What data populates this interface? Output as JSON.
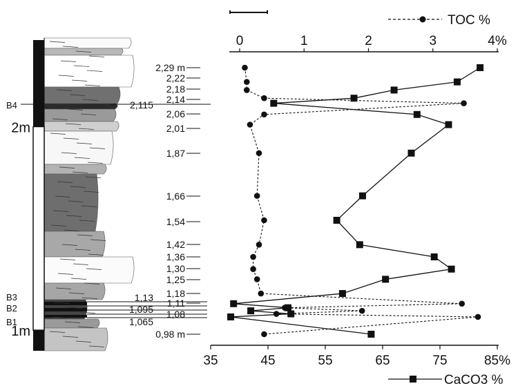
{
  "chart_data": {
    "type": "line",
    "title": "",
    "depth_unit": "m",
    "depth_range": [
      0.92,
      2.35
    ],
    "toc_axis": {
      "range": [
        0,
        4
      ],
      "ticks": [
        0,
        1,
        2,
        3,
        4
      ],
      "tick_labels": [
        "0",
        "1",
        "2",
        "3",
        "4%"
      ]
    },
    "caco3_axis": {
      "range": [
        35,
        85
      ],
      "ticks": [
        35,
        45,
        55,
        65,
        75,
        85
      ],
      "tick_labels": [
        "35",
        "45",
        "55",
        "65",
        "75",
        "85%"
      ]
    },
    "legend": {
      "toc": "TOC %",
      "caco3": "CaCO3 %"
    },
    "depth_labels": [
      {
        "label": "2,29 m",
        "depth": 2.29
      },
      {
        "label": "2,22",
        "depth": 2.22
      },
      {
        "label": "2,18",
        "depth": 2.18
      },
      {
        "label": "2,14",
        "depth": 2.14
      },
      {
        "label": "2,06",
        "depth": 2.06
      },
      {
        "label": "2,01",
        "depth": 2.01
      },
      {
        "label": "1,87",
        "depth": 1.87
      },
      {
        "label": "1,66",
        "depth": 1.66
      },
      {
        "label": "1,54",
        "depth": 1.54
      },
      {
        "label": "1,42",
        "depth": 1.42
      },
      {
        "label": "1,36",
        "depth": 1.36
      },
      {
        "label": "1,30",
        "depth": 1.3
      },
      {
        "label": "1,25",
        "depth": 1.25
      },
      {
        "label": "1,18",
        "depth": 1.18
      },
      {
        "label": "1,11",
        "depth": 1.11
      },
      {
        "label": "1,08",
        "depth": 1.08
      },
      {
        "label": "0,98 m",
        "depth": 0.98
      }
    ],
    "left_depth_labels": [
      {
        "label": "2,115",
        "depth": 2.115
      },
      {
        "label": "1,13",
        "depth": 1.13
      },
      {
        "label": "1,095",
        "depth": 1.095
      },
      {
        "label": "1,065",
        "depth": 1.065
      }
    ],
    "beds": [
      {
        "label": "B4",
        "depth": 2.115
      },
      {
        "label": "B3",
        "depth": 1.13
      },
      {
        "label": "B2",
        "depth": 1.095
      },
      {
        "label": "B1",
        "depth": 1.065
      }
    ],
    "scale_labels": [
      {
        "label": "2m",
        "depth": 2.0
      },
      {
        "label": "1m",
        "depth": 1.0
      }
    ],
    "toc_series": [
      {
        "depth": 2.29,
        "value": 0.08
      },
      {
        "depth": 2.22,
        "value": 0.11
      },
      {
        "depth": 2.18,
        "value": 0.11
      },
      {
        "depth": 2.14,
        "value": 0.38
      },
      {
        "depth": 2.115,
        "value": 3.48
      },
      {
        "depth": 2.06,
        "value": 0.38
      },
      {
        "depth": 2.01,
        "value": 0.16
      },
      {
        "depth": 1.87,
        "value": 0.3
      },
      {
        "depth": 1.66,
        "value": 0.27
      },
      {
        "depth": 1.54,
        "value": 0.38
      },
      {
        "depth": 1.42,
        "value": 0.3
      },
      {
        "depth": 1.36,
        "value": 0.21
      },
      {
        "depth": 1.3,
        "value": 0.21
      },
      {
        "depth": 1.25,
        "value": 0.27
      },
      {
        "depth": 1.18,
        "value": 0.33
      },
      {
        "depth": 1.13,
        "value": 3.45
      },
      {
        "depth": 1.11,
        "value": 0.7
      },
      {
        "depth": 1.095,
        "value": 1.9
      },
      {
        "depth": 1.08,
        "value": 0.57
      },
      {
        "depth": 1.065,
        "value": 3.7
      },
      {
        "depth": 0.98,
        "value": 0.38
      }
    ],
    "caco3_series": [
      {
        "depth": 2.29,
        "value": 82.0
      },
      {
        "depth": 2.22,
        "value": 78.0
      },
      {
        "depth": 2.18,
        "value": 67.0
      },
      {
        "depth": 2.14,
        "value": 60.0
      },
      {
        "depth": 2.115,
        "value": 46.0
      },
      {
        "depth": 2.06,
        "value": 71.0
      },
      {
        "depth": 2.01,
        "value": 76.5
      },
      {
        "depth": 1.87,
        "value": 70.0
      },
      {
        "depth": 1.66,
        "value": 61.5
      },
      {
        "depth": 1.54,
        "value": 57.0
      },
      {
        "depth": 1.42,
        "value": 61.0
      },
      {
        "depth": 1.36,
        "value": 74.0
      },
      {
        "depth": 1.3,
        "value": 77.0
      },
      {
        "depth": 1.25,
        "value": 65.5
      },
      {
        "depth": 1.18,
        "value": 58.0
      },
      {
        "depth": 1.13,
        "value": 39.0
      },
      {
        "depth": 1.11,
        "value": 48.5
      },
      {
        "depth": 1.095,
        "value": 42.0
      },
      {
        "depth": 1.08,
        "value": 49.0
      },
      {
        "depth": 1.065,
        "value": 38.5
      },
      {
        "depth": 0.98,
        "value": 63.0
      }
    ]
  }
}
